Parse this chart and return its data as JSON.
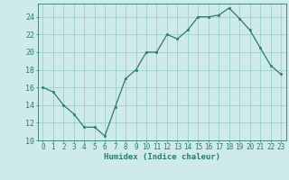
{
  "x": [
    0,
    1,
    2,
    3,
    4,
    5,
    6,
    7,
    8,
    9,
    10,
    11,
    12,
    13,
    14,
    15,
    16,
    17,
    18,
    19,
    20,
    21,
    22,
    23
  ],
  "y": [
    16,
    15.5,
    14,
    13,
    11.5,
    11.5,
    10.5,
    13.8,
    17,
    18,
    20,
    20,
    22,
    21.5,
    22.5,
    24,
    24,
    24.2,
    25,
    23.8,
    22.5,
    20.5,
    18.5,
    17.5
  ],
  "line_color": "#2d7a6b",
  "marker_color": "#2d7a6b",
  "bg_color": "#ceeaea",
  "grid_color": "#9dcece",
  "xlabel": "Humidex (Indice chaleur)",
  "ylim": [
    10,
    25
  ],
  "yticks": [
    10,
    12,
    14,
    16,
    18,
    20,
    22,
    24
  ],
  "xticks": [
    0,
    1,
    2,
    3,
    4,
    5,
    6,
    7,
    8,
    9,
    10,
    11,
    12,
    13,
    14,
    15,
    16,
    17,
    18,
    19,
    20,
    21,
    22,
    23
  ],
  "tick_color": "#2d7a6b",
  "label_fontsize": 5.5,
  "xlabel_fontsize": 6.5,
  "axis_color": "#2d7a6b",
  "linewidth": 0.9,
  "markersize": 2.0
}
